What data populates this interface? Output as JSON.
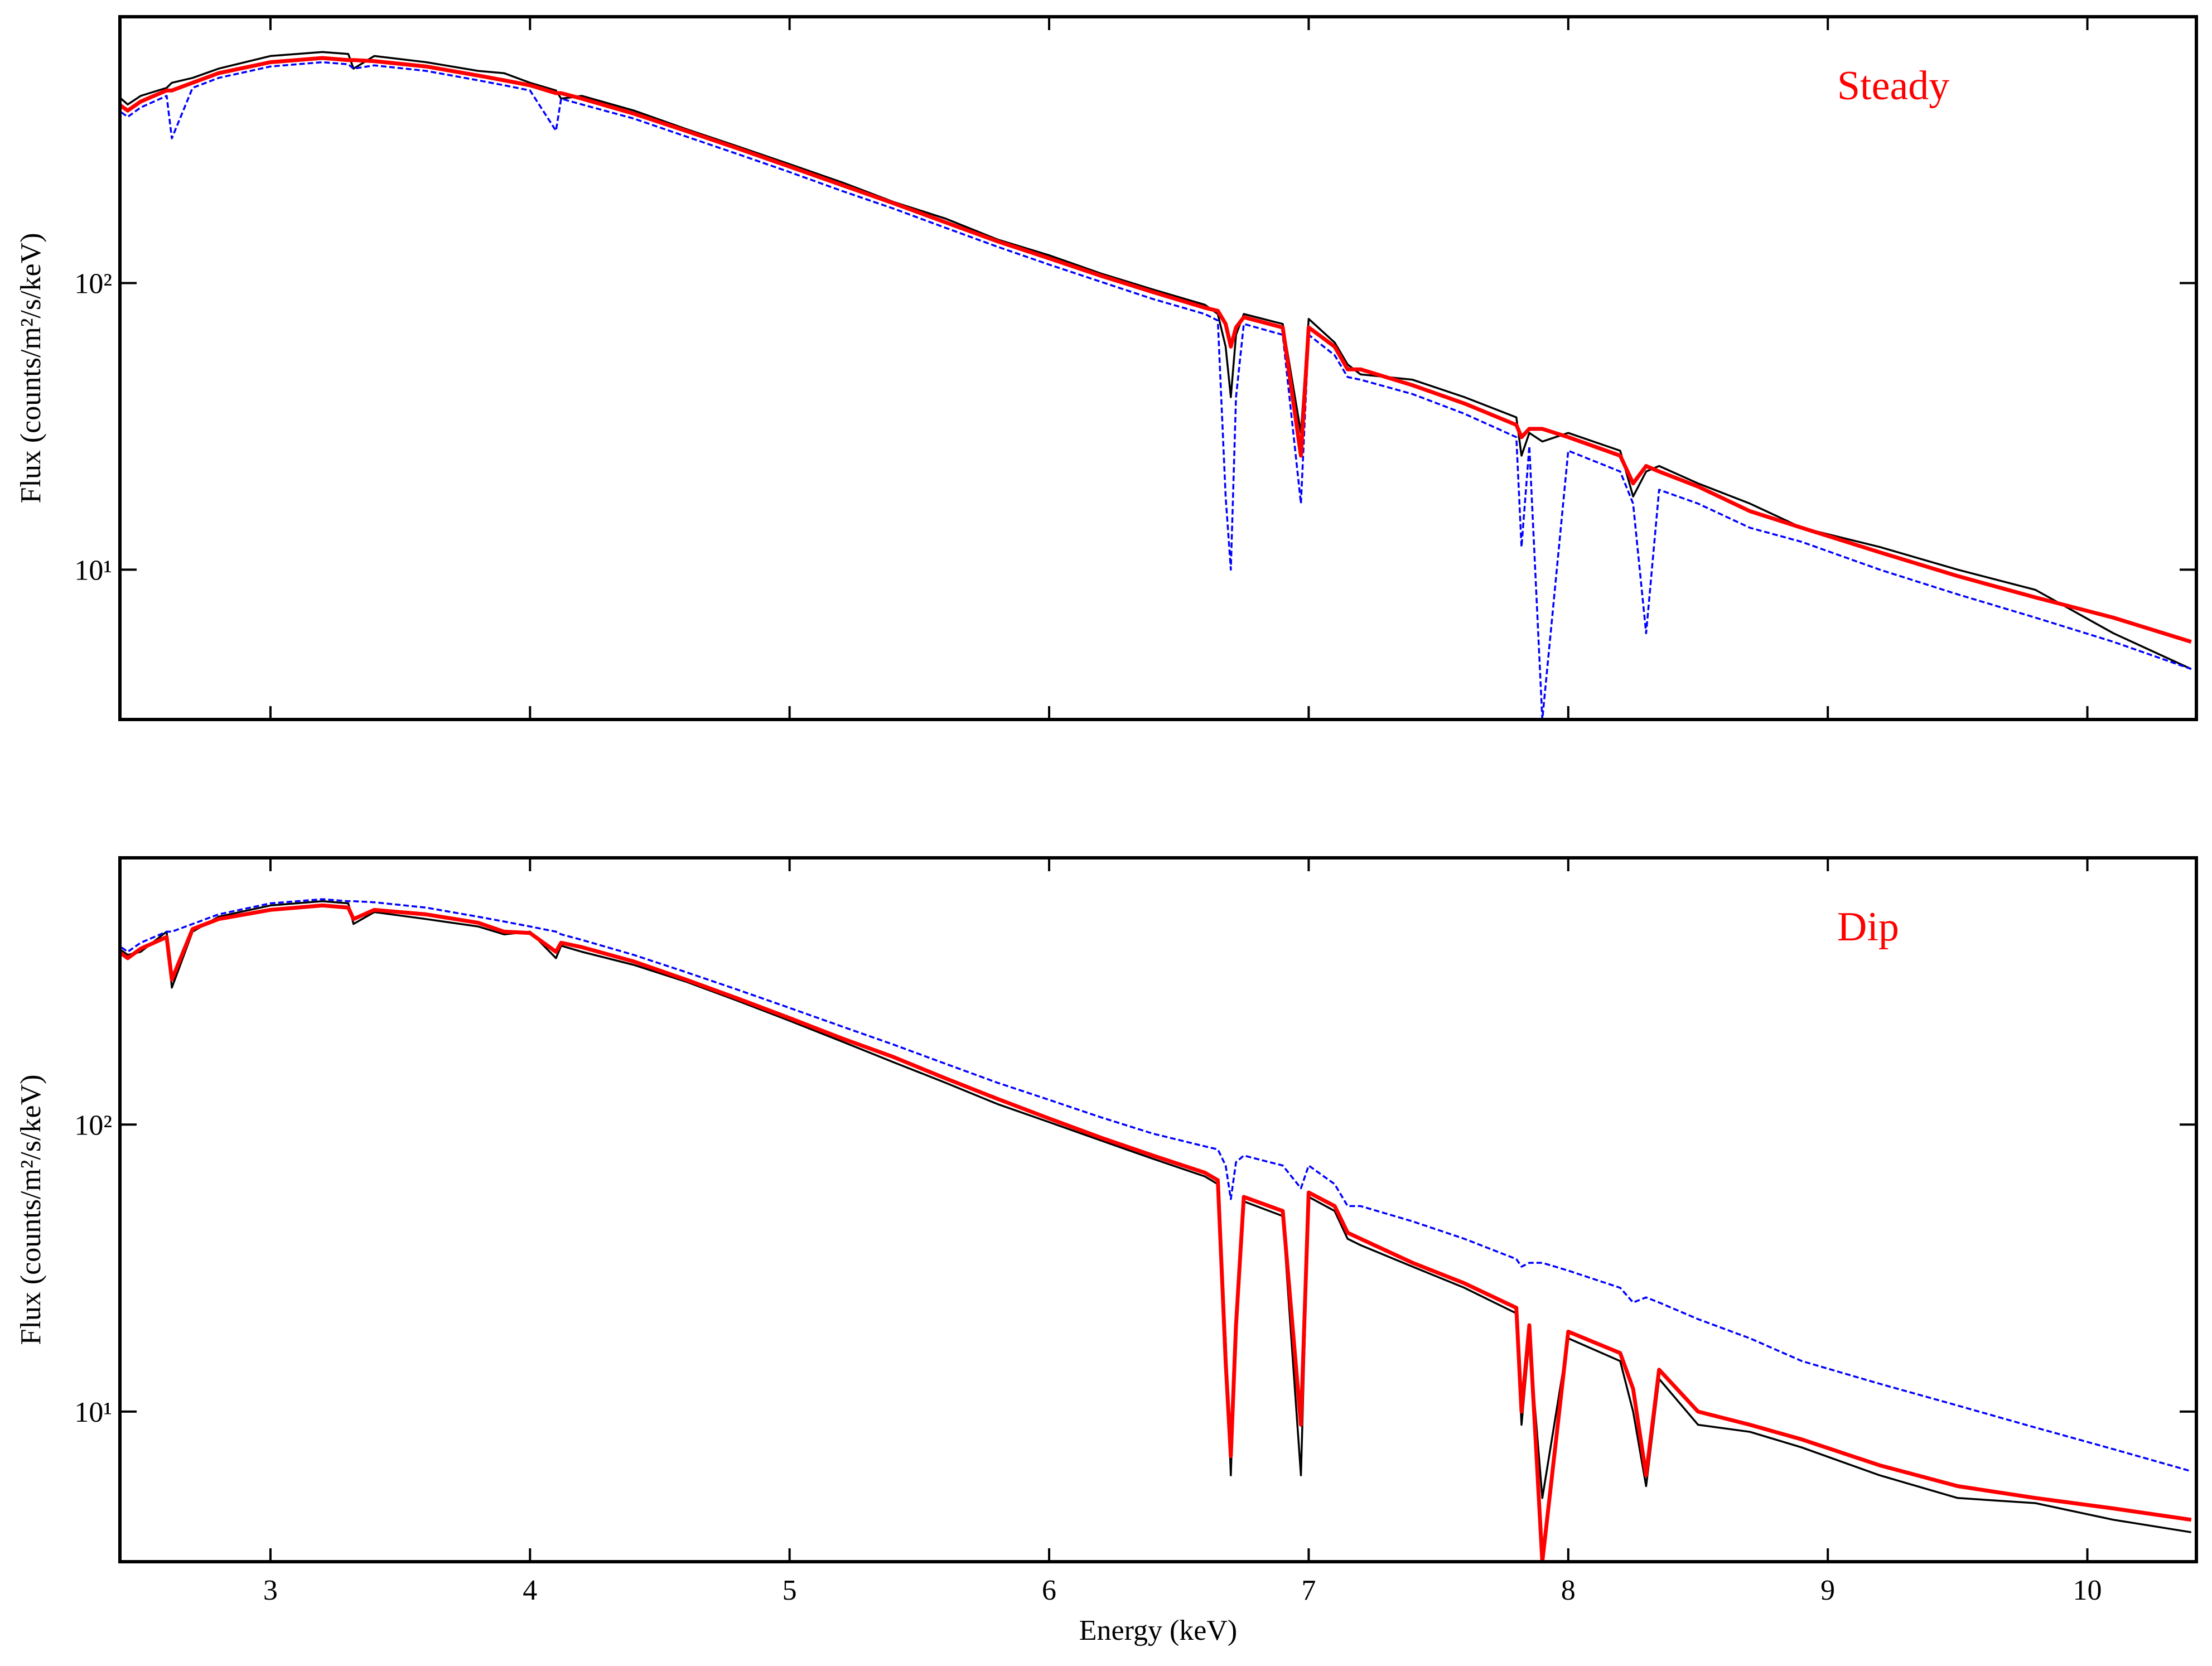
{
  "chart_data": [
    {
      "type": "line",
      "annotation": "Steady",
      "annotation_color": "#ff0000",
      "ylabel": "Flux (counts/m²/s/keV)",
      "log_y": true,
      "xlim": [
        2.42,
        10.42
      ],
      "xticks": [
        3,
        4,
        5,
        6,
        7,
        8,
        9,
        10
      ],
      "ylim": [
        3,
        850
      ],
      "yticks": [
        {
          "value": 10,
          "label": "10¹"
        },
        {
          "value": 100,
          "label": "10²"
        }
      ],
      "x": [
        2.4,
        2.45,
        2.5,
        2.6,
        2.62,
        2.7,
        2.8,
        3.0,
        3.2,
        3.3,
        3.32,
        3.4,
        3.6,
        3.8,
        3.9,
        4.0,
        4.1,
        4.12,
        4.2,
        4.4,
        4.6,
        4.8,
        5.0,
        5.2,
        5.4,
        5.6,
        5.8,
        6.0,
        6.2,
        6.4,
        6.6,
        6.65,
        6.68,
        6.7,
        6.72,
        6.75,
        6.9,
        6.97,
        7.0,
        7.1,
        7.15,
        7.2,
        7.4,
        7.6,
        7.8,
        7.82,
        7.85,
        7.9,
        8.0,
        8.2,
        8.25,
        8.3,
        8.35,
        8.5,
        8.7,
        8.9,
        9.2,
        9.5,
        9.8,
        10.1,
        10.4
      ],
      "series": [
        {
          "color": "#000000",
          "linestyle": "solid",
          "values": [
            460,
            420,
            450,
            480,
            500,
            520,
            560,
            620,
            640,
            630,
            560,
            620,
            590,
            550,
            540,
            500,
            470,
            440,
            450,
            400,
            345,
            300,
            260,
            225,
            192,
            168,
            142,
            125,
            108,
            95,
            84,
            78,
            60,
            40,
            66,
            78,
            72,
            30,
            75,
            62,
            52,
            48,
            46,
            40,
            34,
            25,
            30,
            28,
            30,
            26,
            18,
            22,
            23,
            20,
            17,
            14,
            12,
            10,
            8.5,
            6,
            4.5
          ]
        },
        {
          "color": "#0000ff",
          "linestyle": "dashed",
          "values": [
            410,
            380,
            410,
            450,
            320,
            480,
            520,
            570,
            590,
            580,
            560,
            575,
            550,
            510,
            490,
            470,
            340,
            440,
            420,
            375,
            325,
            282,
            244,
            210,
            182,
            156,
            134,
            116,
            101,
            88,
            78,
            74,
            18,
            10,
            40,
            72,
            66,
            17,
            66,
            56,
            47,
            46,
            41,
            35,
            29,
            12,
            27,
            3,
            26,
            22,
            17,
            6,
            19,
            17,
            14,
            12.5,
            10,
            8.2,
            6.8,
            5.6,
            4.5
          ]
        },
        {
          "color": "#ff0000",
          "linestyle": "solid",
          "values": [
            430,
            400,
            430,
            470,
            470,
            500,
            540,
            590,
            610,
            600,
            600,
            595,
            570,
            530,
            510,
            490,
            460,
            460,
            440,
            390,
            340,
            295,
            255,
            220,
            190,
            163,
            140,
            122,
            106,
            93,
            82,
            80,
            72,
            60,
            70,
            76,
            70,
            25,
            70,
            60,
            50,
            50,
            44,
            38,
            32,
            29,
            31,
            31,
            29,
            25,
            20,
            23,
            22,
            19.5,
            16,
            14,
            11.5,
            9.5,
            8,
            6.8,
            5.6
          ]
        }
      ]
    },
    {
      "type": "line",
      "annotation": "Dip",
      "annotation_color": "#ff0000",
      "ylabel": "Flux (counts/m²/s/keV)",
      "xlabel": "Energy (keV)",
      "log_y": true,
      "xlim": [
        2.42,
        10.42
      ],
      "xticks": [
        3,
        4,
        5,
        6,
        7,
        8,
        9,
        10
      ],
      "ylim": [
        3,
        850
      ],
      "yticks": [
        {
          "value": 10,
          "label": "10¹"
        },
        {
          "value": 100,
          "label": "10²"
        }
      ],
      "x": [
        2.4,
        2.45,
        2.5,
        2.6,
        2.62,
        2.7,
        2.8,
        3.0,
        3.2,
        3.3,
        3.32,
        3.4,
        3.6,
        3.8,
        3.9,
        4.0,
        4.1,
        4.12,
        4.2,
        4.4,
        4.6,
        4.8,
        5.0,
        5.2,
        5.4,
        5.6,
        5.8,
        6.0,
        6.2,
        6.4,
        6.6,
        6.65,
        6.68,
        6.7,
        6.72,
        6.75,
        6.9,
        6.97,
        7.0,
        7.1,
        7.15,
        7.2,
        7.4,
        7.6,
        7.8,
        7.82,
        7.85,
        7.9,
        8.0,
        8.2,
        8.25,
        8.3,
        8.35,
        8.5,
        8.7,
        8.9,
        9.2,
        9.5,
        9.8,
        10.1,
        10.4
      ],
      "series": [
        {
          "color": "#000000",
          "linestyle": "solid",
          "values": [
            420,
            390,
            400,
            470,
            300,
            470,
            530,
            580,
            600,
            590,
            500,
            550,
            520,
            490,
            460,
            470,
            380,
            420,
            400,
            360,
            315,
            270,
            230,
            195,
            165,
            140,
            118,
            102,
            88,
            76,
            66,
            62,
            18,
            6,
            22,
            54,
            48,
            6,
            56,
            50,
            40,
            38,
            32,
            27,
            22,
            9,
            18,
            5,
            18,
            15,
            10,
            5.5,
            13,
            9,
            8.5,
            7.5,
            6,
            5,
            4.8,
            4.2,
            3.8
          ]
        },
        {
          "color": "#0000ff",
          "linestyle": "dashed",
          "values": [
            430,
            400,
            430,
            470,
            470,
            500,
            540,
            590,
            610,
            600,
            600,
            595,
            570,
            530,
            510,
            490,
            470,
            460,
            440,
            390,
            340,
            295,
            255,
            220,
            190,
            163,
            140,
            122,
            106,
            93,
            84,
            82,
            72,
            55,
            74,
            78,
            72,
            60,
            72,
            62,
            52,
            52,
            46,
            40,
            34,
            32,
            33,
            33,
            31,
            27,
            24,
            25,
            24,
            21,
            18,
            15,
            12.5,
            10.5,
            8.8,
            7.4,
            6.2
          ]
        },
        {
          "color": "#ff0000",
          "linestyle": "solid",
          "values": [
            410,
            380,
            410,
            450,
            320,
            480,
            520,
            560,
            580,
            570,
            520,
            560,
            540,
            505,
            470,
            465,
            400,
            430,
            415,
            370,
            320,
            275,
            235,
            200,
            172,
            145,
            123,
            105,
            90,
            78,
            68,
            64,
            15,
            7,
            20,
            56,
            50,
            9,
            58,
            52,
            42,
            40,
            33,
            28,
            23,
            10,
            20,
            3,
            19,
            16,
            12,
            6,
            14,
            10,
            9,
            8,
            6.5,
            5.5,
            5,
            4.6,
            4.2
          ]
        }
      ]
    }
  ]
}
